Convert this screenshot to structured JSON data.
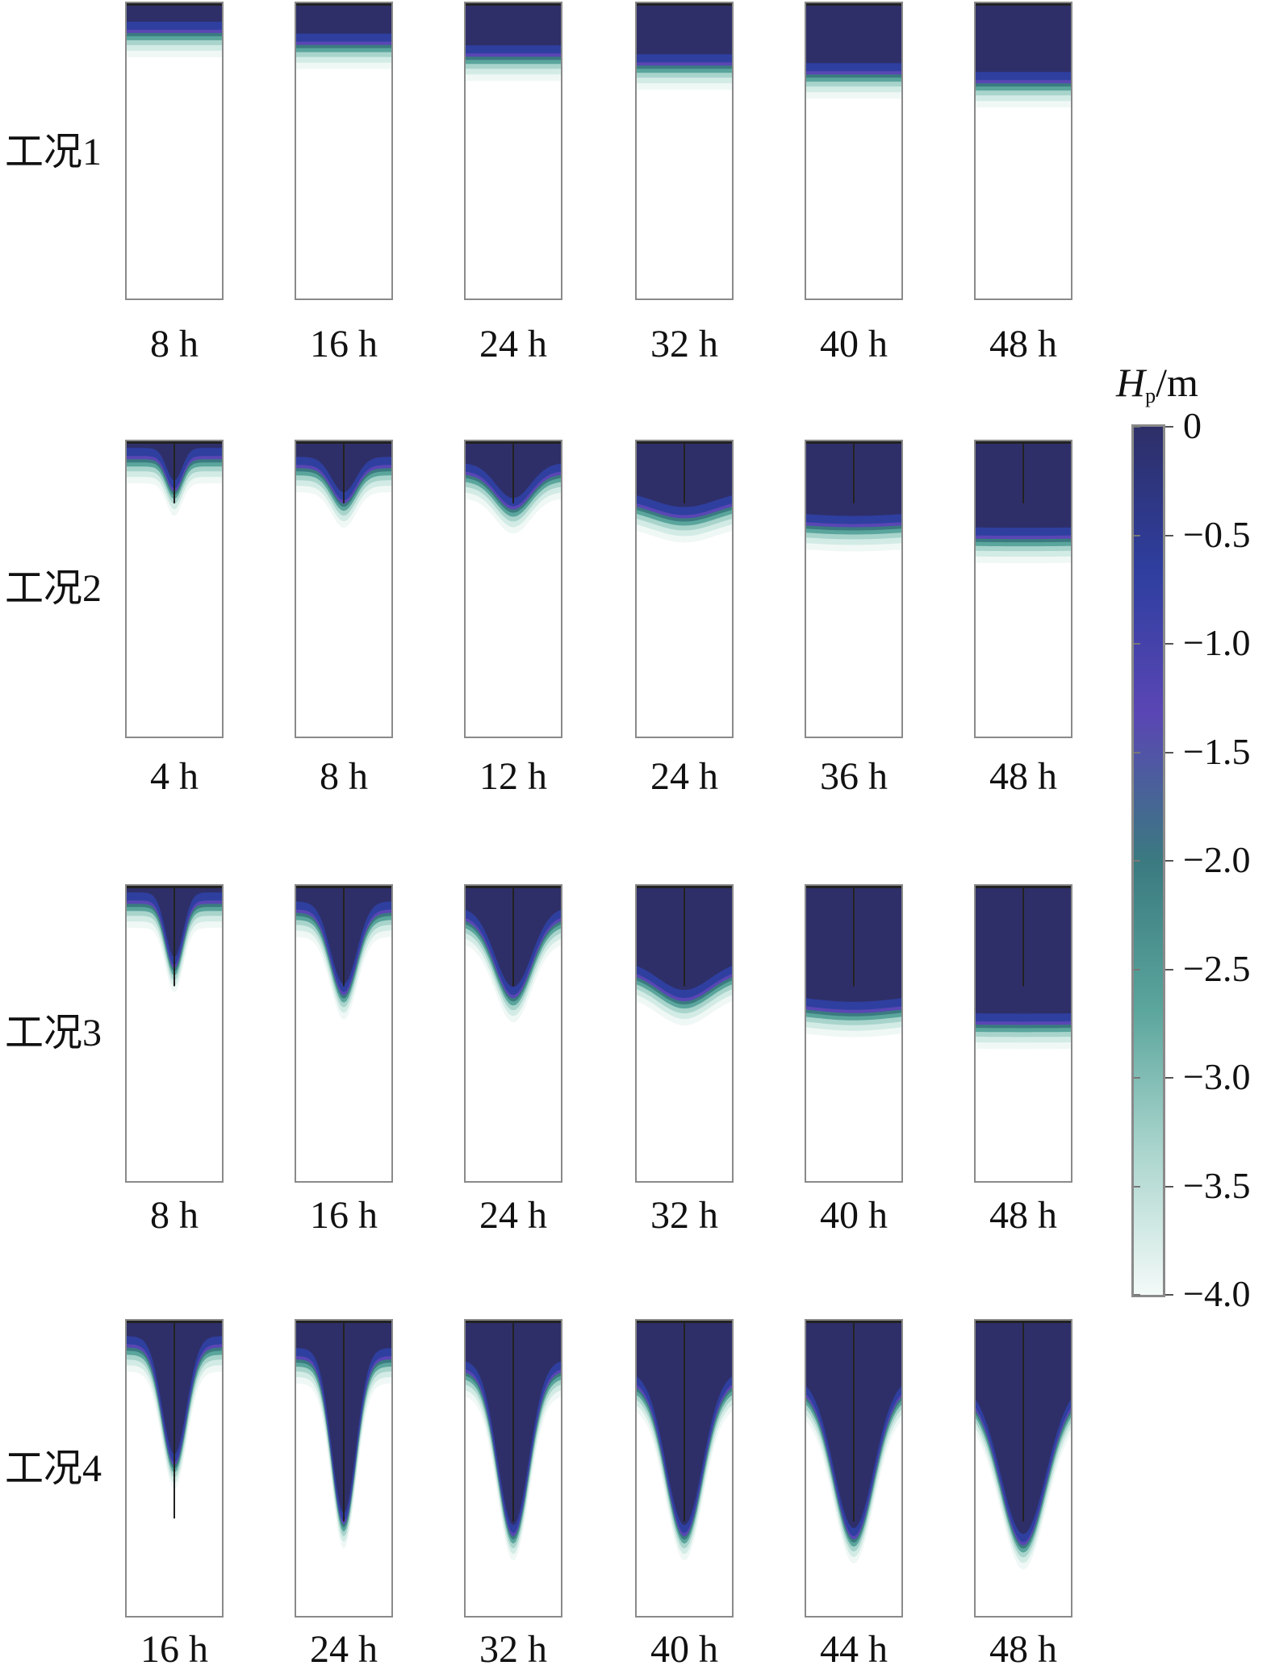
{
  "chart_data": {
    "type": "heatmap",
    "colorbar": {
      "title_symbol": "H",
      "title_subscript": "p",
      "title_unit": "/m",
      "ticks": [
        "0",
        "−0.5",
        "−1.0",
        "−1.5",
        "−2.0",
        "−2.5",
        "−3.0",
        "−3.5",
        "−4.0"
      ],
      "range": [
        -4.0,
        0
      ],
      "colors": [
        "#2e2f68",
        "#2f3fa0",
        "#5a46b4",
        "#3a7a80",
        "#5aa59c",
        "#a8d4cc",
        "#f3faf8"
      ]
    },
    "rows": [
      {
        "label": "工况1",
        "panels": [
          {
            "time": "8 h",
            "front_depth": 0.09,
            "center_depth": 0.09,
            "spread": 0,
            "line_depth": 0
          },
          {
            "time": "16 h",
            "front_depth": 0.13,
            "center_depth": 0.13,
            "spread": 0,
            "line_depth": 0
          },
          {
            "time": "24 h",
            "front_depth": 0.17,
            "center_depth": 0.17,
            "spread": 0,
            "line_depth": 0
          },
          {
            "time": "32 h",
            "front_depth": 0.2,
            "center_depth": 0.2,
            "spread": 0,
            "line_depth": 0
          },
          {
            "time": "40 h",
            "front_depth": 0.23,
            "center_depth": 0.23,
            "spread": 0,
            "line_depth": 0
          },
          {
            "time": "48 h",
            "front_depth": 0.26,
            "center_depth": 0.26,
            "spread": 0,
            "line_depth": 0
          }
        ]
      },
      {
        "label": "工况2",
        "panels": [
          {
            "time": "4 h",
            "front_depth": 0.05,
            "center_depth": 0.16,
            "spread": 0.18,
            "line_depth": 0.21
          },
          {
            "time": "8 h",
            "front_depth": 0.08,
            "center_depth": 0.2,
            "spread": 0.28,
            "line_depth": 0.21
          },
          {
            "time": "12 h",
            "front_depth": 0.1,
            "center_depth": 0.22,
            "spread": 0.4,
            "line_depth": 0.21
          },
          {
            "time": "24 h",
            "front_depth": 0.19,
            "center_depth": 0.25,
            "spread": 0.75,
            "line_depth": 0.21
          },
          {
            "time": "36 h",
            "front_depth": 0.26,
            "center_depth": 0.28,
            "spread": 1.3,
            "line_depth": 0.21
          },
          {
            "time": "48 h",
            "front_depth": 0.31,
            "center_depth": 0.32,
            "spread": 2.5,
            "line_depth": 0.21
          }
        ]
      },
      {
        "label": "工况3",
        "panels": [
          {
            "time": "8 h",
            "front_depth": 0.05,
            "center_depth": 0.27,
            "spread": 0.2,
            "line_depth": 0.34
          },
          {
            "time": "16 h",
            "front_depth": 0.08,
            "center_depth": 0.36,
            "spread": 0.3,
            "line_depth": 0.34
          },
          {
            "time": "24 h",
            "front_depth": 0.1,
            "center_depth": 0.37,
            "spread": 0.42,
            "line_depth": 0.34
          },
          {
            "time": "32 h",
            "front_depth": 0.28,
            "center_depth": 0.38,
            "spread": 0.6,
            "line_depth": 0.34
          },
          {
            "time": "40 h",
            "front_depth": 0.39,
            "center_depth": 0.42,
            "spread": 1.1,
            "line_depth": 0.34
          },
          {
            "time": "48 h",
            "front_depth": 0.45,
            "center_depth": 0.46,
            "spread": 2.5,
            "line_depth": 0.34
          }
        ]
      },
      {
        "label": "工况4",
        "panels": [
          {
            "time": "16 h",
            "front_depth": 0.08,
            "center_depth": 0.48,
            "spread": 0.28,
            "line_depth": 0.67
          },
          {
            "time": "24 h",
            "front_depth": 0.12,
            "center_depth": 0.68,
            "spread": 0.28,
            "line_depth": 0.68
          },
          {
            "time": "32 h",
            "front_depth": 0.16,
            "center_depth": 0.72,
            "spread": 0.36,
            "line_depth": 0.68
          },
          {
            "time": "40 h",
            "front_depth": 0.2,
            "center_depth": 0.72,
            "spread": 0.42,
            "line_depth": 0.68
          },
          {
            "time": "44 h",
            "front_depth": 0.22,
            "center_depth": 0.73,
            "spread": 0.46,
            "line_depth": 0.68
          },
          {
            "time": "48 h",
            "front_depth": 0.24,
            "center_depth": 0.75,
            "spread": 0.52,
            "line_depth": 0.68
          }
        ]
      }
    ]
  }
}
